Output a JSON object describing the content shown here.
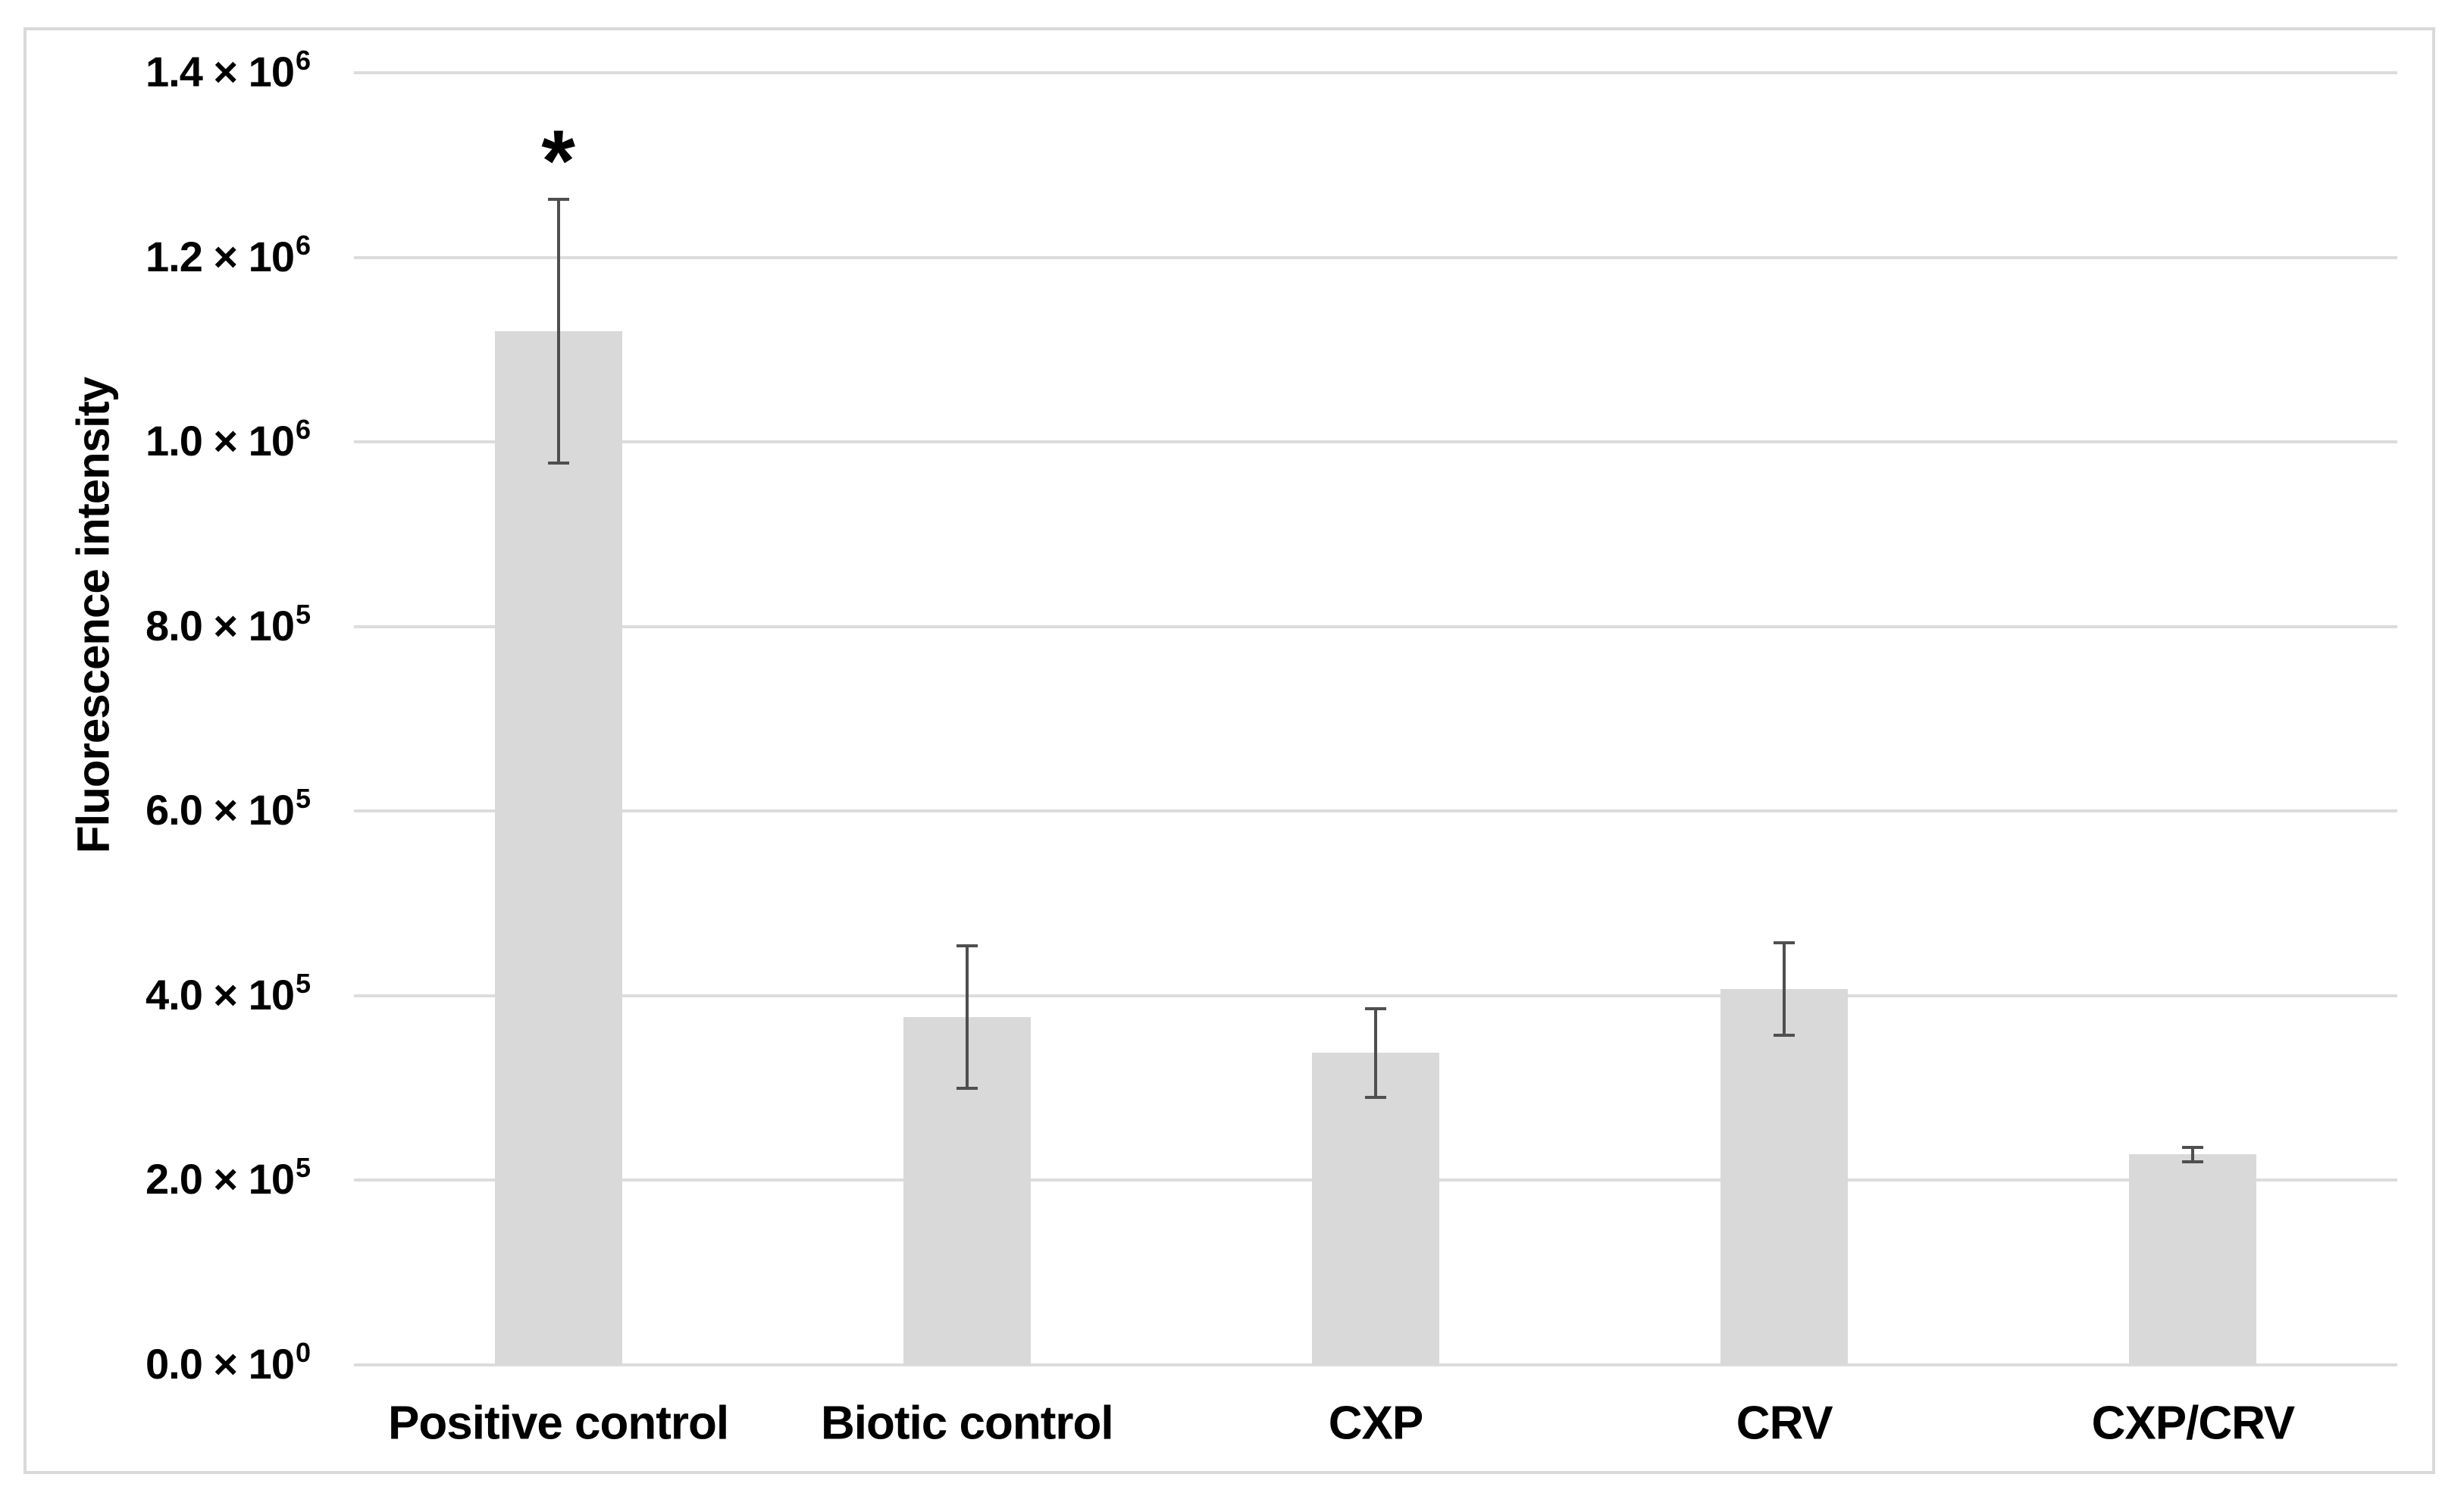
{
  "chart_data": {
    "type": "bar",
    "title": "",
    "xlabel": "",
    "ylabel": "Fluorescence intensity",
    "categories": [
      "Positive control",
      "Biotic control",
      "CXP",
      "CRV",
      "CXP/CRV"
    ],
    "values": [
      1120000,
      377000,
      338000,
      407000,
      228000
    ],
    "error_bars": [
      143000,
      77000,
      48000,
      50000,
      8000
    ],
    "annotations": [
      {
        "category_index": 0,
        "text": "*"
      }
    ],
    "ylim": [
      0,
      1400000
    ],
    "grid": true,
    "legend_position": "none",
    "yticks": [
      {
        "value": 0,
        "label": "0.0 × 10",
        "sup": "0"
      },
      {
        "value": 200000,
        "label": "2.0 × 10",
        "sup": "5"
      },
      {
        "value": 400000,
        "label": "4.0 × 10",
        "sup": "5"
      },
      {
        "value": 600000,
        "label": "6.0 × 10",
        "sup": "5"
      },
      {
        "value": 800000,
        "label": "8.0 × 10",
        "sup": "5"
      },
      {
        "value": 1000000,
        "label": "1.0 × 10",
        "sup": "6"
      },
      {
        "value": 1200000,
        "label": "1.2 × 10",
        "sup": "6"
      },
      {
        "value": 1400000,
        "label": "1.4 × 10",
        "sup": "6"
      }
    ],
    "colors": {
      "bar_fill": "#d9d9d9",
      "gridline": "#dcdcdc",
      "error_bar": "#4f4f4f",
      "figure_border": "#d9d9d9",
      "text": "#000000",
      "background": "#ffffff"
    }
  }
}
